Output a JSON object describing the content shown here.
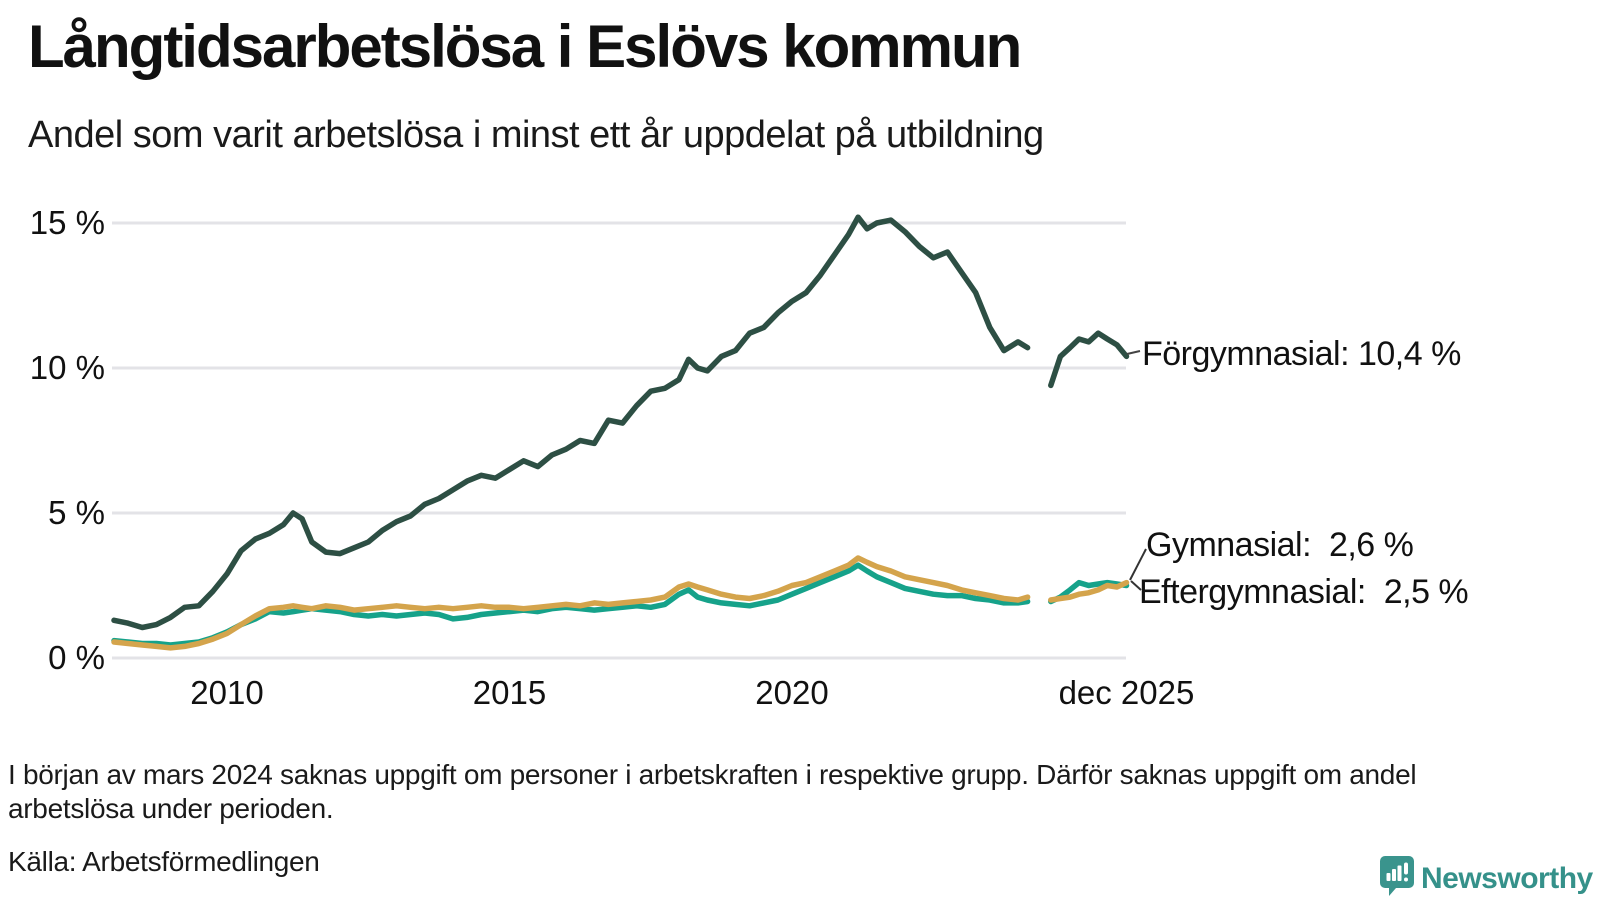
{
  "header": {
    "title": "Långtidsarbetslösa i Eslövs kommun",
    "subtitle": "Andel som varit arbetslösa i minst ett år uppdelat på utbildning"
  },
  "chart_data": {
    "type": "line",
    "title": "Långtidsarbetslösa i Eslövs kommun",
    "subtitle": "Andel som varit arbetslösa i minst ett år uppdelat på utbildning",
    "unit": "%",
    "grid": "horizontal",
    "legend_position": "end-of-line-labels",
    "x_range": [
      2008.0,
      2025.92
    ],
    "ylim": [
      0,
      15.5
    ],
    "yticks": [
      {
        "value": 0,
        "label": "0 %"
      },
      {
        "value": 5,
        "label": "5 %"
      },
      {
        "value": 10,
        "label": "10 %"
      },
      {
        "value": 15,
        "label": "15 %"
      }
    ],
    "xticks": [
      {
        "value": 2010,
        "label": "2010"
      },
      {
        "value": 2015,
        "label": "2015"
      },
      {
        "value": 2020,
        "label": "2020"
      },
      {
        "value": 2025.92,
        "label": "dec 2025"
      }
    ],
    "x": [
      2008.0,
      2008.25,
      2008.5,
      2008.75,
      2009.0,
      2009.25,
      2009.5,
      2009.75,
      2010.0,
      2010.25,
      2010.5,
      2010.75,
      2011.0,
      2011.17,
      2011.33,
      2011.5,
      2011.75,
      2012.0,
      2012.25,
      2012.5,
      2012.75,
      2013.0,
      2013.25,
      2013.5,
      2013.75,
      2014.0,
      2014.25,
      2014.5,
      2014.75,
      2015.0,
      2015.25,
      2015.5,
      2015.75,
      2016.0,
      2016.25,
      2016.5,
      2016.75,
      2017.0,
      2017.25,
      2017.5,
      2017.75,
      2018.0,
      2018.17,
      2018.33,
      2018.5,
      2018.75,
      2019.0,
      2019.25,
      2019.5,
      2019.75,
      2020.0,
      2020.25,
      2020.5,
      2020.75,
      2021.0,
      2021.17,
      2021.33,
      2021.5,
      2021.75,
      2022.0,
      2022.25,
      2022.5,
      2022.75,
      2023.0,
      2023.25,
      2023.5,
      2023.75,
      2024.0,
      2024.17,
      2024.42,
      2024.58,
      2024.75,
      2024.92,
      2025.08,
      2025.25,
      2025.42,
      2025.58,
      2025.75,
      2025.92
    ],
    "series": [
      {
        "name": "Förgymnasial",
        "color": "#2d4f44",
        "end_value": "10,4 %",
        "end_label": "Förgymnasial: 10,4 %",
        "values": [
          1.3,
          1.2,
          1.05,
          1.15,
          1.4,
          1.75,
          1.8,
          2.3,
          2.9,
          3.7,
          4.1,
          4.3,
          4.6,
          5.0,
          4.8,
          4.0,
          3.65,
          3.6,
          3.8,
          4.0,
          4.4,
          4.7,
          4.9,
          5.3,
          5.5,
          5.8,
          6.1,
          6.3,
          6.2,
          6.5,
          6.8,
          6.6,
          7.0,
          7.2,
          7.5,
          7.4,
          8.2,
          8.1,
          8.7,
          9.2,
          9.3,
          9.6,
          10.3,
          10.0,
          9.9,
          10.4,
          10.6,
          11.2,
          11.4,
          11.9,
          12.3,
          12.6,
          13.2,
          13.9,
          14.6,
          15.2,
          14.8,
          15.0,
          15.1,
          14.7,
          14.2,
          13.8,
          14.0,
          13.3,
          12.6,
          11.4,
          10.6,
          10.9,
          10.7,
          null,
          9.4,
          10.4,
          10.7,
          11.0,
          10.9,
          11.2,
          11.0,
          10.8,
          10.4
        ]
      },
      {
        "name": "Eftergymnasial",
        "color": "#16a28a",
        "end_value": "2,5 %",
        "end_label": "Eftergymnasial:  2,5 %",
        "values": [
          0.6,
          0.55,
          0.5,
          0.5,
          0.45,
          0.5,
          0.55,
          0.7,
          0.9,
          1.15,
          1.35,
          1.6,
          1.55,
          1.6,
          1.65,
          1.7,
          1.65,
          1.6,
          1.5,
          1.45,
          1.5,
          1.45,
          1.5,
          1.55,
          1.5,
          1.35,
          1.4,
          1.5,
          1.55,
          1.6,
          1.65,
          1.6,
          1.7,
          1.75,
          1.7,
          1.65,
          1.7,
          1.75,
          1.8,
          1.75,
          1.85,
          2.2,
          2.35,
          2.1,
          2.0,
          1.9,
          1.85,
          1.8,
          1.9,
          2.0,
          2.2,
          2.4,
          2.6,
          2.8,
          3.0,
          3.2,
          3.0,
          2.8,
          2.6,
          2.4,
          2.3,
          2.2,
          2.15,
          2.15,
          2.05,
          2.0,
          1.9,
          1.9,
          1.95,
          null,
          1.95,
          2.1,
          2.35,
          2.6,
          2.5,
          2.55,
          2.6,
          2.55,
          2.5
        ]
      },
      {
        "name": "Gymnasial",
        "color": "#d4a44c",
        "end_value": "2,6 %",
        "end_label": "Gymnasial:  2,6 %",
        "values": [
          0.55,
          0.5,
          0.45,
          0.4,
          0.35,
          0.4,
          0.5,
          0.65,
          0.85,
          1.15,
          1.45,
          1.7,
          1.75,
          1.8,
          1.75,
          1.7,
          1.8,
          1.75,
          1.65,
          1.7,
          1.75,
          1.8,
          1.75,
          1.7,
          1.75,
          1.7,
          1.75,
          1.8,
          1.75,
          1.75,
          1.7,
          1.75,
          1.8,
          1.85,
          1.8,
          1.9,
          1.85,
          1.9,
          1.95,
          2.0,
          2.1,
          2.45,
          2.55,
          2.45,
          2.35,
          2.2,
          2.1,
          2.05,
          2.15,
          2.3,
          2.5,
          2.6,
          2.8,
          3.0,
          3.2,
          3.45,
          3.3,
          3.15,
          3.0,
          2.8,
          2.7,
          2.6,
          2.5,
          2.35,
          2.25,
          2.15,
          2.05,
          2.0,
          2.1,
          null,
          2.0,
          2.05,
          2.1,
          2.2,
          2.25,
          2.35,
          2.5,
          2.45,
          2.6
        ]
      }
    ],
    "colors": {
      "gridline": "#e3e3e7",
      "text": "#111111",
      "forgymnasial": "#2d4f44",
      "gymnasial": "#d4a44c",
      "eftergymnasial": "#16a28a"
    }
  },
  "footer": {
    "note": "I början av mars 2024 saknas uppgift om personer i arbetskraften i respektive grupp. Därför saknas uppgift om andel arbetslösa under perioden.",
    "source": "Källa: Arbetsförmedlingen",
    "brand": "Newsworthy",
    "brand_color": "#35918a"
  },
  "icons": {
    "brand_logo": "newsworthy-speech-bubble-chart-icon"
  }
}
